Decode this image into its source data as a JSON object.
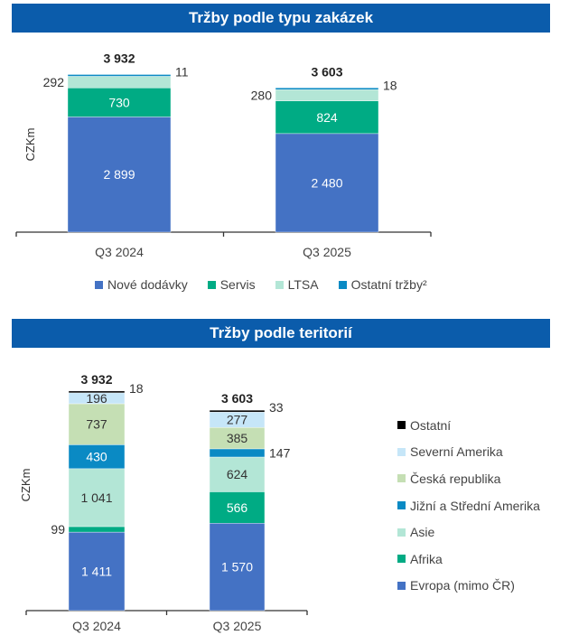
{
  "colors": {
    "nove": "#4472c4",
    "servis": "#00ab84",
    "ltsa": "#b3e6d6",
    "ostatni_trzby": "#0a8ac4",
    "evropa": "#4472c4",
    "afrika": "#00ab84",
    "asie": "#b3e6d6",
    "jizni": "#0a8ac4",
    "ceska": "#c5dfb4",
    "severni": "#c6e6f8",
    "ostatni": "#000000",
    "title_bar": "#0b5cab"
  },
  "chart_data": [
    {
      "type": "stacked-bar",
      "title": "Tržby podle typu zakázek",
      "ylabel": "CZKm",
      "categories": [
        "Q3 2024",
        "Q3 2025"
      ],
      "totals": [
        "3 932",
        "3 603"
      ],
      "legend_position": "bottom",
      "series": [
        {
          "name": "Nové dodávky",
          "color_key": "nove",
          "values": [
            2899,
            2480
          ],
          "labels": [
            "2 899",
            "2 480"
          ],
          "label_pos": [
            "inside",
            "inside"
          ]
        },
        {
          "name": "Servis",
          "color_key": "servis",
          "values": [
            730,
            824
          ],
          "labels": [
            "730",
            "824"
          ],
          "label_pos": [
            "inside",
            "inside"
          ]
        },
        {
          "name": "LTSA",
          "color_key": "ltsa",
          "values": [
            292,
            280
          ],
          "labels": [
            "292",
            "280"
          ],
          "label_pos": [
            "left",
            "left"
          ]
        },
        {
          "name": "Ostatní tržby²",
          "color_key": "ostatni_trzby",
          "values": [
            11,
            18
          ],
          "labels": [
            "11",
            "18"
          ],
          "label_pos": [
            "right",
            "right"
          ]
        }
      ]
    },
    {
      "type": "stacked-bar",
      "title": "Tržby podle teritorií",
      "ylabel": "CZKm",
      "categories": [
        "Q3 2024",
        "Q3 2025"
      ],
      "totals": [
        "3 932",
        "3 603"
      ],
      "legend_position": "right",
      "series": [
        {
          "name": "Evropa (mimo ČR)",
          "color_key": "evropa",
          "values": [
            1411,
            1570
          ],
          "labels": [
            "1 411",
            "1 570"
          ],
          "label_pos": [
            "inside",
            "inside"
          ]
        },
        {
          "name": "Afrika",
          "color_key": "afrika",
          "values": [
            99,
            566
          ],
          "labels": [
            "99",
            "566"
          ],
          "label_pos": [
            "left",
            "inside"
          ]
        },
        {
          "name": "Asie",
          "color_key": "asie",
          "values": [
            1041,
            624
          ],
          "labels": [
            "1 041",
            "624"
          ],
          "label_pos": [
            "inside",
            "inside"
          ]
        },
        {
          "name": "Jižní a Střední Amerika",
          "color_key": "jizni",
          "values": [
            430,
            147
          ],
          "labels": [
            "430",
            "147"
          ],
          "label_pos": [
            "inside",
            "right"
          ]
        },
        {
          "name": "Česká republika",
          "color_key": "ceska",
          "values": [
            737,
            385
          ],
          "labels": [
            "737",
            "385"
          ],
          "label_pos": [
            "inside",
            "inside"
          ]
        },
        {
          "name": "Severní Amerika",
          "color_key": "severni",
          "values": [
            196,
            277
          ],
          "labels": [
            "196",
            "277"
          ],
          "label_pos": [
            "inside",
            "inside"
          ]
        },
        {
          "name": "Ostatní",
          "color_key": "ostatni",
          "values": [
            18,
            33
          ],
          "labels": [
            "18",
            "33"
          ],
          "label_pos": [
            "right",
            "right"
          ]
        }
      ]
    }
  ]
}
